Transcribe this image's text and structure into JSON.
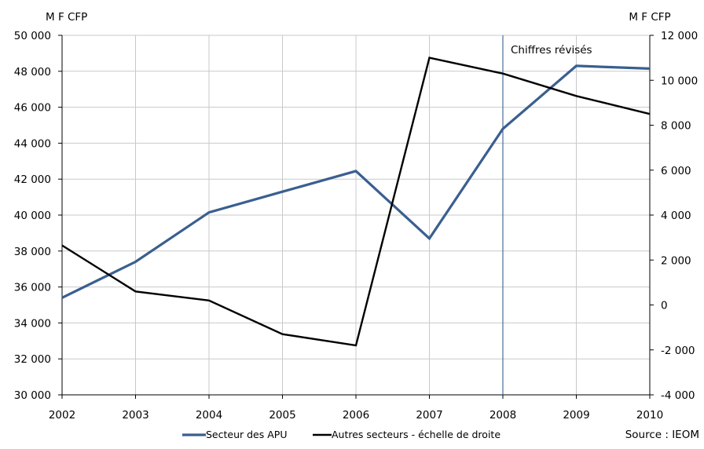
{
  "chart_data": {
    "type": "line",
    "categories": [
      "2002",
      "2003",
      "2004",
      "2005",
      "2006",
      "2007",
      "2008",
      "2009",
      "2010"
    ],
    "left_axis": {
      "unit_label": "M F CFP",
      "ylim": [
        30000,
        50000
      ],
      "ticks": [
        "30 000",
        "32 000",
        "34 000",
        "36 000",
        "38 000",
        "40 000",
        "42 000",
        "44 000",
        "46 000",
        "48 000",
        "50 000"
      ]
    },
    "right_axis": {
      "unit_label": "M F CFP",
      "ylim": [
        -4000,
        12000
      ],
      "ticks": [
        "-4 000",
        "-2 000",
        "0",
        "2 000",
        "4 000",
        "6 000",
        "8 000",
        "10 000",
        "12 000"
      ]
    },
    "series": [
      {
        "name": "Secteur des APU",
        "axis": "left",
        "color": "#3a5f8f",
        "values": [
          35400,
          37400,
          40150,
          41300,
          42450,
          38700,
          44800,
          48300,
          48150
        ]
      },
      {
        "name": "Autres secteurs - échelle de droite",
        "axis": "right",
        "color": "#000000",
        "values": [
          2650,
          600,
          200,
          -1300,
          -1800,
          11000,
          10300,
          9300,
          8500
        ]
      }
    ],
    "annotation": {
      "text": "Chiffres révisés",
      "x": "2008"
    },
    "source": "Source : IEOM",
    "grid": true,
    "legend_position": "bottom"
  }
}
